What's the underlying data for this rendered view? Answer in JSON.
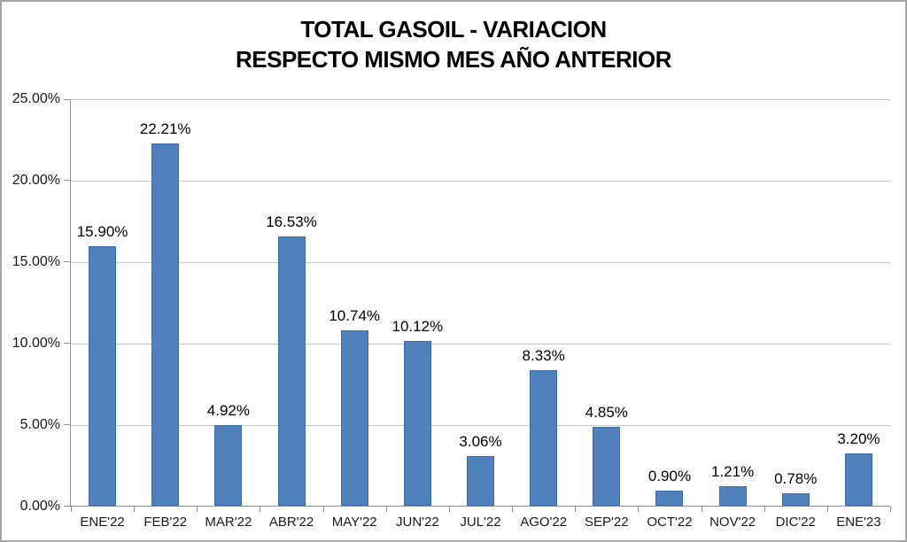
{
  "chart_data": {
    "type": "bar",
    "title": "TOTAL GASOIL - VARIACION",
    "subtitle": "RESPECTO MISMO MES AÑO ANTERIOR",
    "categories": [
      "ENE'22",
      "FEB'22",
      "MAR'22",
      "ABR'22",
      "MAY'22",
      "JUN'22",
      "JUL'22",
      "AGO'22",
      "SEP'22",
      "OCT'22",
      "NOV'22",
      "DIC'22",
      "ENE'23"
    ],
    "values": [
      15.9,
      22.21,
      4.92,
      16.53,
      10.74,
      10.12,
      3.06,
      8.33,
      4.85,
      0.9,
      1.21,
      0.78,
      3.2
    ],
    "data_labels": [
      "15.90%",
      "22.21%",
      "4.92%",
      "16.53%",
      "10.74%",
      "10.12%",
      "3.06%",
      "8.33%",
      "4.85%",
      "0.90%",
      "1.21%",
      "0.78%",
      "3.20%"
    ],
    "xlabel": "",
    "ylabel": "",
    "ylim": [
      0,
      25
    ],
    "ytick_step": 5,
    "ytick_labels": [
      "0.00%",
      "5.00%",
      "10.00%",
      "15.00%",
      "20.00%",
      "25.00%"
    ],
    "grid": true,
    "legend": false,
    "bar_color": "#4f81bd",
    "bar_border_color": "#3d6da3",
    "gridline_color": "#c9c9c9",
    "axis_color": "#8e8e8e",
    "text_color": "#000000"
  }
}
